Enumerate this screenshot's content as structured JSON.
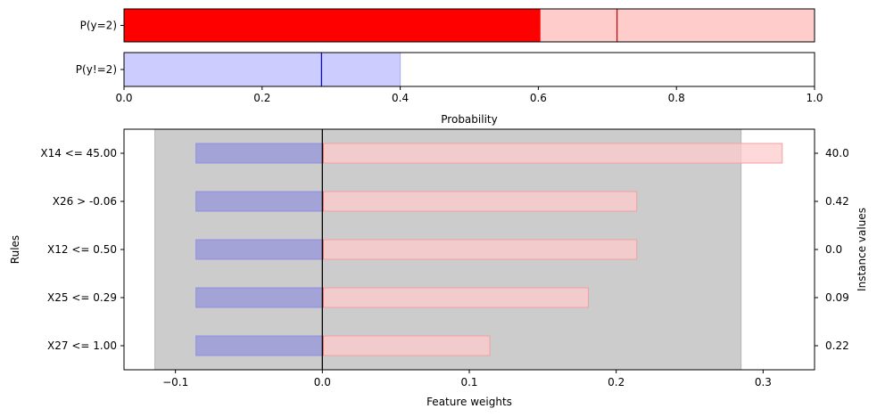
{
  "chart_data": [
    {
      "type": "bar",
      "orientation": "horizontal",
      "xlabel": "Probability",
      "xlim": [
        0,
        1
      ],
      "xticks": [
        "0.0",
        "0.2",
        "0.4",
        "0.6",
        "0.8",
        "1.0"
      ],
      "rows": [
        {
          "label": "P(y=2)",
          "color": "#ff0000",
          "band": [
            0,
            1
          ],
          "band_color": "#ffcccc",
          "value": 0.603,
          "marker": 0.714,
          "marker_color": "#cc0000"
        },
        {
          "label": "P(y!=2)",
          "color": "#ccccff",
          "band": [
            0,
            0.4
          ],
          "band_color": "#ccccff",
          "value": 0,
          "marker": 0.286,
          "marker_color": "#0000cc"
        }
      ]
    },
    {
      "type": "bar",
      "orientation": "horizontal",
      "xlabel": "Feature weights",
      "ylabel": "Rules",
      "y2label": "Instance values",
      "xlim": [
        -0.135,
        0.335
      ],
      "xticks": [
        "−0.1",
        "0.0",
        "0.1",
        "0.2",
        "0.3"
      ],
      "xtick_values": [
        -0.1,
        0,
        0.1,
        0.2,
        0.3
      ],
      "background_band": [
        -0.114,
        0.285
      ],
      "background_color": "#cccccc",
      "positive_color": "#ffcccc",
      "negative_color": "#a3a3d8",
      "rules": [
        {
          "label": "X14 <= 45.00",
          "instance": "40.0",
          "low": -0.086,
          "high": 0.313
        },
        {
          "label": "X26 > -0.06",
          "instance": "0.42",
          "low": -0.086,
          "high": 0.214
        },
        {
          "label": "X12 <= 0.50",
          "instance": "0.0",
          "low": -0.086,
          "high": 0.214
        },
        {
          "label": "X25 <= 0.29",
          "instance": "0.09",
          "low": -0.086,
          "high": 0.181
        },
        {
          "label": "X27 <= 1.00",
          "instance": "0.22",
          "low": -0.086,
          "high": 0.114
        }
      ]
    }
  ]
}
